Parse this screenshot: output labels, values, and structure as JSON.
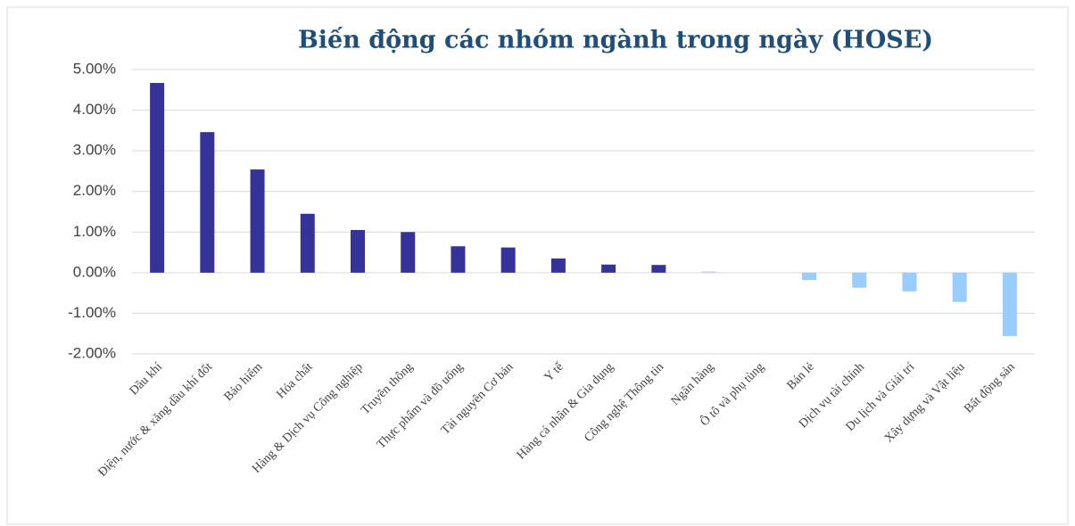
{
  "chart_data": {
    "type": "bar",
    "title": "Biến động các nhóm ngành trong ngày (HOSE)",
    "categories": [
      "Dầu khí",
      "Điện, nước & xăng dầu khí đốt",
      "Bảo hiểm",
      "Hóa chất",
      "Hàng & Dịch vụ Công nghiệp",
      "Truyền thông",
      "Thực phẩm và đồ uống",
      "Tài nguyên Cơ bản",
      "Y tế",
      "Hàng cá nhân & Gia dụng",
      "Công nghệ Thông tin",
      "Ngân hàng",
      "Ô tô và phụ tùng",
      "Bán lẻ",
      "Dịch vụ tài chính",
      "Du lịch và Giải trí",
      "Xây dựng và Vật liệu",
      "Bất động sản"
    ],
    "values": [
      4.67,
      3.46,
      2.54,
      1.45,
      1.05,
      1.0,
      0.65,
      0.62,
      0.35,
      0.2,
      0.19,
      0.03,
      0.0,
      -0.18,
      -0.37,
      -0.46,
      -0.72,
      -1.56
    ],
    "colors": [
      "#333399",
      "#333399",
      "#333399",
      "#333399",
      "#333399",
      "#333399",
      "#333399",
      "#333399",
      "#333399",
      "#333399",
      "#333399",
      "#c9c9e6",
      "#99ccff",
      "#99ccff",
      "#99ccff",
      "#99ccff",
      "#99ccff",
      "#99ccff"
    ],
    "ylim": [
      -2,
      5
    ],
    "yticks": [
      {
        "value": -2,
        "label": "-2.00%"
      },
      {
        "value": -1,
        "label": "-1.00%"
      },
      {
        "value": 0,
        "label": "0.00%"
      },
      {
        "value": 1,
        "label": "1.00%"
      },
      {
        "value": 2,
        "label": "2.00%"
      },
      {
        "value": 3,
        "label": "3.00%"
      },
      {
        "value": 4,
        "label": "4.00%"
      },
      {
        "value": 5,
        "label": "5.00%"
      }
    ],
    "grid": true
  }
}
